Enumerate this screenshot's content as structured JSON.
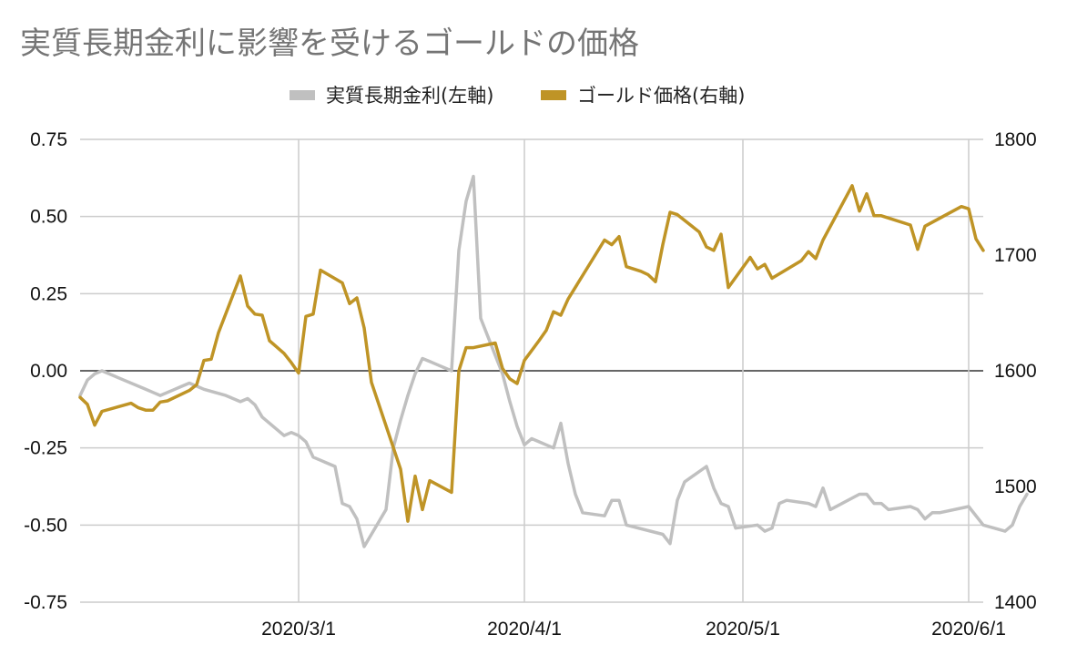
{
  "chart_data": {
    "type": "line",
    "title": "実質長期金利に影響を受けるゴールドの価格",
    "x_tick_labels": [
      "2020/3/1",
      "2020/4/1",
      "2020/5/1",
      "2020/6/1"
    ],
    "x_range": [
      "2020-01-31",
      "2020-06-03"
    ],
    "y_left": {
      "range": [
        -0.75,
        0.75
      ],
      "tick_labels": [
        "0.75",
        "0.50",
        "0.25",
        "0.00",
        "-0.25",
        "-0.50",
        "-0.75"
      ]
    },
    "y_right": {
      "range": [
        1400,
        1800
      ],
      "tick_labels": [
        "1800",
        "1700",
        "1600",
        "1500",
        "1400"
      ]
    },
    "legend": {
      "position": "top"
    },
    "grid": true,
    "series": [
      {
        "name": "実質長期金利(左軸)",
        "axis": "left",
        "color": "#c0c0c0",
        "points": [
          [
            "2020-01-31",
            -0.08
          ],
          [
            "2020-02-01",
            -0.03
          ],
          [
            "2020-02-02",
            -0.01
          ],
          [
            "2020-02-03",
            0.0
          ],
          [
            "2020-02-04",
            -0.01
          ],
          [
            "2020-02-05",
            -0.02
          ],
          [
            "2020-02-06",
            -0.03
          ],
          [
            "2020-02-09",
            -0.06
          ],
          [
            "2020-02-10",
            -0.07
          ],
          [
            "2020-02-11",
            -0.08
          ],
          [
            "2020-02-13",
            -0.06
          ],
          [
            "2020-02-14",
            -0.05
          ],
          [
            "2020-02-15",
            -0.04
          ],
          [
            "2020-02-16",
            -0.05
          ],
          [
            "2020-02-17",
            -0.06
          ],
          [
            "2020-02-20",
            -0.08
          ],
          [
            "2020-02-21",
            -0.09
          ],
          [
            "2020-02-22",
            -0.1
          ],
          [
            "2020-02-23",
            -0.09
          ],
          [
            "2020-02-24",
            -0.11
          ],
          [
            "2020-02-25",
            -0.15
          ],
          [
            "2020-02-26",
            -0.17
          ],
          [
            "2020-02-27",
            -0.19
          ],
          [
            "2020-02-28",
            -0.21
          ],
          [
            "2020-02-29",
            -0.2
          ],
          [
            "2020-03-01",
            -0.21
          ],
          [
            "2020-03-02",
            -0.23
          ],
          [
            "2020-03-03",
            -0.28
          ],
          [
            "2020-03-04",
            -0.29
          ],
          [
            "2020-03-05",
            -0.3
          ],
          [
            "2020-03-06",
            -0.31
          ],
          [
            "2020-03-07",
            -0.43
          ],
          [
            "2020-03-08",
            -0.44
          ],
          [
            "2020-03-09",
            -0.48
          ],
          [
            "2020-03-10",
            -0.57
          ],
          [
            "2020-03-13",
            -0.45
          ],
          [
            "2020-03-14",
            -0.25
          ],
          [
            "2020-03-15",
            -0.16
          ],
          [
            "2020-03-16",
            -0.08
          ],
          [
            "2020-03-17",
            -0.01
          ],
          [
            "2020-03-18",
            0.04
          ],
          [
            "2020-03-19",
            0.03
          ],
          [
            "2020-03-20",
            0.02
          ],
          [
            "2020-03-21",
            0.01
          ],
          [
            "2020-03-22",
            0.0
          ],
          [
            "2020-03-23",
            0.39
          ],
          [
            "2020-03-24",
            0.55
          ],
          [
            "2020-03-25",
            0.63
          ],
          [
            "2020-03-26",
            0.17
          ],
          [
            "2020-03-27",
            0.11
          ],
          [
            "2020-03-28",
            0.05
          ],
          [
            "2020-03-29",
            -0.01
          ],
          [
            "2020-03-30",
            -0.1
          ],
          [
            "2020-03-31",
            -0.18
          ],
          [
            "2020-04-01",
            -0.24
          ],
          [
            "2020-04-02",
            -0.22
          ],
          [
            "2020-04-03",
            -0.23
          ],
          [
            "2020-04-04",
            -0.24
          ],
          [
            "2020-04-05",
            -0.25
          ],
          [
            "2020-04-06",
            -0.17
          ],
          [
            "2020-04-07",
            -0.3
          ],
          [
            "2020-04-08",
            -0.4
          ],
          [
            "2020-04-09",
            -0.46
          ],
          [
            "2020-04-12",
            -0.47
          ],
          [
            "2020-04-13",
            -0.42
          ],
          [
            "2020-04-14",
            -0.42
          ],
          [
            "2020-04-15",
            -0.5
          ],
          [
            "2020-04-20",
            -0.53
          ],
          [
            "2020-04-21",
            -0.56
          ],
          [
            "2020-04-22",
            -0.42
          ],
          [
            "2020-04-23",
            -0.36
          ],
          [
            "2020-04-26",
            -0.31
          ],
          [
            "2020-04-27",
            -0.38
          ],
          [
            "2020-04-28",
            -0.43
          ],
          [
            "2020-04-29",
            -0.44
          ],
          [
            "2020-04-30",
            -0.51
          ],
          [
            "2020-05-03",
            -0.5
          ],
          [
            "2020-05-04",
            -0.52
          ],
          [
            "2020-05-05",
            -0.51
          ],
          [
            "2020-05-06",
            -0.43
          ],
          [
            "2020-05-07",
            -0.42
          ],
          [
            "2020-05-10",
            -0.43
          ],
          [
            "2020-05-11",
            -0.44
          ],
          [
            "2020-05-12",
            -0.38
          ],
          [
            "2020-05-13",
            -0.45
          ],
          [
            "2020-05-17",
            -0.4
          ],
          [
            "2020-05-18",
            -0.4
          ],
          [
            "2020-05-19",
            -0.43
          ],
          [
            "2020-05-20",
            -0.43
          ],
          [
            "2020-05-21",
            -0.45
          ],
          [
            "2020-05-24",
            -0.44
          ],
          [
            "2020-05-25",
            -0.45
          ],
          [
            "2020-05-26",
            -0.48
          ],
          [
            "2020-05-27",
            -0.46
          ],
          [
            "2020-05-28",
            -0.46
          ],
          [
            "2020-06-01",
            -0.44
          ],
          [
            "2020-06-03",
            -0.5
          ],
          [
            "2020-06-06",
            -0.52
          ],
          [
            "2020-06-07",
            -0.5
          ],
          [
            "2020-06-08",
            -0.44
          ],
          [
            "2020-06-09",
            -0.4
          ]
        ]
      },
      {
        "name": "ゴールド価格(右軸)",
        "axis": "right",
        "color": "#bf9426",
        "points": [
          [
            "2020-01-31",
            1577
          ],
          [
            "2020-02-01",
            1571
          ],
          [
            "2020-02-02",
            1553
          ],
          [
            "2020-02-03",
            1565
          ],
          [
            "2020-02-07",
            1572
          ],
          [
            "2020-02-08",
            1568
          ],
          [
            "2020-02-09",
            1566
          ],
          [
            "2020-02-10",
            1566
          ],
          [
            "2020-02-11",
            1573
          ],
          [
            "2020-02-12",
            1574
          ],
          [
            "2020-02-15",
            1583
          ],
          [
            "2020-02-16",
            1588
          ],
          [
            "2020-02-17",
            1609
          ],
          [
            "2020-02-18",
            1610
          ],
          [
            "2020-02-19",
            1633
          ],
          [
            "2020-02-22",
            1682
          ],
          [
            "2020-02-23",
            1656
          ],
          [
            "2020-02-24",
            1649
          ],
          [
            "2020-02-25",
            1648
          ],
          [
            "2020-02-26",
            1626
          ],
          [
            "2020-02-28",
            1615
          ],
          [
            "2020-02-29",
            1607
          ],
          [
            "2020-03-01",
            1598
          ],
          [
            "2020-03-02",
            1647
          ],
          [
            "2020-03-03",
            1649
          ],
          [
            "2020-03-04",
            1687
          ],
          [
            "2020-03-07",
            1676
          ],
          [
            "2020-03-08",
            1658
          ],
          [
            "2020-03-09",
            1663
          ],
          [
            "2020-03-10",
            1637
          ],
          [
            "2020-03-11",
            1590
          ],
          [
            "2020-03-15",
            1515
          ],
          [
            "2020-03-16",
            1470
          ],
          [
            "2020-03-17",
            1509
          ],
          [
            "2020-03-18",
            1480
          ],
          [
            "2020-03-19",
            1505
          ],
          [
            "2020-03-22",
            1495
          ],
          [
            "2020-03-23",
            1600
          ],
          [
            "2020-03-24",
            1620
          ],
          [
            "2020-03-25",
            1620
          ],
          [
            "2020-03-28",
            1624
          ],
          [
            "2020-03-29",
            1602
          ],
          [
            "2020-03-30",
            1593
          ],
          [
            "2020-03-31",
            1589
          ],
          [
            "2020-04-01",
            1609
          ],
          [
            "2020-04-03",
            1626
          ],
          [
            "2020-04-04",
            1635
          ],
          [
            "2020-04-05",
            1651
          ],
          [
            "2020-04-06",
            1648
          ],
          [
            "2020-04-07",
            1662
          ],
          [
            "2020-04-12",
            1713
          ],
          [
            "2020-04-13",
            1709
          ],
          [
            "2020-04-14",
            1716
          ],
          [
            "2020-04-15",
            1690
          ],
          [
            "2020-04-17",
            1686
          ],
          [
            "2020-04-18",
            1683
          ],
          [
            "2020-04-19",
            1677
          ],
          [
            "2020-04-20",
            1709
          ],
          [
            "2020-04-21",
            1737
          ],
          [
            "2020-04-22",
            1735
          ],
          [
            "2020-04-25",
            1720
          ],
          [
            "2020-04-26",
            1707
          ],
          [
            "2020-04-27",
            1704
          ],
          [
            "2020-04-28",
            1718
          ],
          [
            "2020-04-29",
            1672
          ],
          [
            "2020-05-02",
            1698
          ],
          [
            "2020-05-03",
            1688
          ],
          [
            "2020-05-04",
            1692
          ],
          [
            "2020-05-05",
            1680
          ],
          [
            "2020-05-09",
            1695
          ],
          [
            "2020-05-10",
            1703
          ],
          [
            "2020-05-11",
            1697
          ],
          [
            "2020-05-12",
            1713
          ],
          [
            "2020-05-16",
            1760
          ],
          [
            "2020-05-17",
            1738
          ],
          [
            "2020-05-18",
            1753
          ],
          [
            "2020-05-19",
            1734
          ],
          [
            "2020-05-20",
            1734
          ],
          [
            "2020-05-24",
            1726
          ],
          [
            "2020-05-25",
            1705
          ],
          [
            "2020-05-26",
            1725
          ],
          [
            "2020-05-31",
            1742
          ],
          [
            "2020-06-01",
            1740
          ],
          [
            "2020-06-02",
            1714
          ],
          [
            "2020-06-03",
            1704
          ]
        ]
      }
    ]
  }
}
